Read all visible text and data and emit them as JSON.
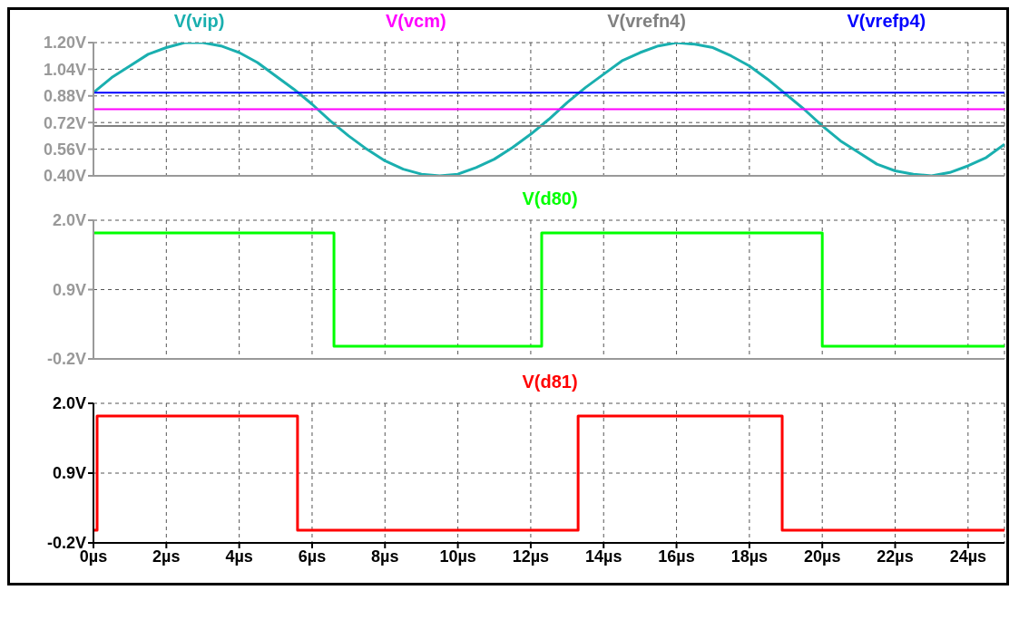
{
  "chart_data": [
    {
      "type": "line",
      "legend": "top",
      "grid": true,
      "marker": "none",
      "line_style": "solid",
      "tick_labels": "y",
      "xlim": [
        0,
        25
      ],
      "xticks": [
        0,
        2,
        4,
        6,
        8,
        10,
        12,
        14,
        16,
        18,
        20,
        22,
        24
      ],
      "ylim": [
        0.4,
        1.2
      ],
      "yticks": [
        {
          "value": 0.4,
          "label": "0.40V"
        },
        {
          "value": 0.56,
          "label": "0.56V"
        },
        {
          "value": 0.72,
          "label": "0.72V"
        },
        {
          "value": 0.88,
          "label": "0.88V"
        },
        {
          "value": 1.04,
          "label": "1.04V"
        },
        {
          "value": 1.2,
          "label": "1.20V"
        }
      ],
      "series": [
        {
          "name": "V(vip)",
          "color": "#1aafaf",
          "x": [
            0,
            0.5,
            1,
            1.5,
            2,
            2.5,
            3,
            3.5,
            4,
            4.5,
            5,
            5.5,
            6,
            6.5,
            7,
            7.5,
            8,
            8.5,
            9,
            9.5,
            10,
            10.5,
            11,
            11.5,
            12,
            12.5,
            13,
            13.5,
            14,
            14.5,
            15,
            15.5,
            16,
            16.5,
            17,
            17.5,
            18,
            18.5,
            19,
            19.5,
            20,
            20.5,
            21,
            21.5,
            22,
            22.5,
            23,
            23.5,
            24,
            24.5,
            25
          ],
          "values": [
            0.9,
            0.99,
            1.06,
            1.13,
            1.17,
            1.2,
            1.2,
            1.18,
            1.14,
            1.08,
            1.0,
            0.92,
            0.83,
            0.73,
            0.64,
            0.56,
            0.49,
            0.44,
            0.41,
            0.4,
            0.41,
            0.45,
            0.5,
            0.57,
            0.65,
            0.74,
            0.84,
            0.93,
            1.01,
            1.09,
            1.14,
            1.18,
            1.2,
            1.19,
            1.17,
            1.12,
            1.06,
            0.98,
            0.89,
            0.8,
            0.7,
            0.61,
            0.54,
            0.47,
            0.43,
            0.41,
            0.4,
            0.42,
            0.46,
            0.51,
            0.59
          ]
        },
        {
          "name": "V(vcm)",
          "color": "#ff00ff",
          "x": [
            0,
            25
          ],
          "values": [
            0.8,
            0.8
          ]
        },
        {
          "name": "V(vrefn4)",
          "color": "#808080",
          "x": [
            0,
            25
          ],
          "values": [
            0.7,
            0.7
          ]
        },
        {
          "name": "V(vrefp4)",
          "color": "#0000ff",
          "x": [
            0,
            25
          ],
          "values": [
            0.9,
            0.9
          ]
        }
      ]
    },
    {
      "type": "line",
      "legend": "top",
      "grid": true,
      "marker": "none",
      "line_style": "solid",
      "tick_labels": "y",
      "xlim": [
        0,
        25
      ],
      "xticks": [
        0,
        2,
        4,
        6,
        8,
        10,
        12,
        14,
        16,
        18,
        20,
        22,
        24
      ],
      "ylim": [
        -0.2,
        2.0
      ],
      "yticks": [
        {
          "value": -0.2,
          "label": "-0.2V"
        },
        {
          "value": 0.9,
          "label": "0.9V"
        },
        {
          "value": 2.0,
          "label": "2.0V"
        }
      ],
      "series": [
        {
          "name": "V(d80)",
          "color": "#00ff00",
          "x": [
            0,
            6.6,
            6.6,
            12.3,
            12.3,
            20.0,
            20.0,
            25
          ],
          "values": [
            1.8,
            1.8,
            0,
            0,
            1.8,
            1.8,
            0,
            0
          ]
        }
      ]
    },
    {
      "type": "line",
      "legend": "top",
      "grid": true,
      "marker": "none",
      "line_style": "solid",
      "xlim": [
        0,
        25
      ],
      "xticks": [
        {
          "value": 0,
          "label": "0µs"
        },
        {
          "value": 2,
          "label": "2µs"
        },
        {
          "value": 4,
          "label": "4µs"
        },
        {
          "value": 6,
          "label": "6µs"
        },
        {
          "value": 8,
          "label": "8µs"
        },
        {
          "value": 10,
          "label": "10µs"
        },
        {
          "value": 12,
          "label": "12µs"
        },
        {
          "value": 14,
          "label": "14µs"
        },
        {
          "value": 16,
          "label": "16µs"
        },
        {
          "value": 18,
          "label": "18µs"
        },
        {
          "value": 20,
          "label": "20µs"
        },
        {
          "value": 22,
          "label": "22µs"
        },
        {
          "value": 24,
          "label": "24µs"
        }
      ],
      "ylim": [
        -0.2,
        2.0
      ],
      "yticks": [
        {
          "value": -0.2,
          "label": "-0.2V"
        },
        {
          "value": 0.9,
          "label": "0.9V"
        },
        {
          "value": 2.0,
          "label": "2.0V"
        }
      ],
      "series": [
        {
          "name": "V(d81)",
          "color": "#ff0000",
          "x": [
            0,
            0.1,
            0.1,
            5.6,
            5.6,
            13.3,
            13.3,
            18.9,
            18.9,
            25
          ],
          "values": [
            0,
            0,
            1.8,
            1.8,
            0,
            0,
            1.8,
            1.8,
            0,
            0
          ]
        }
      ]
    }
  ]
}
